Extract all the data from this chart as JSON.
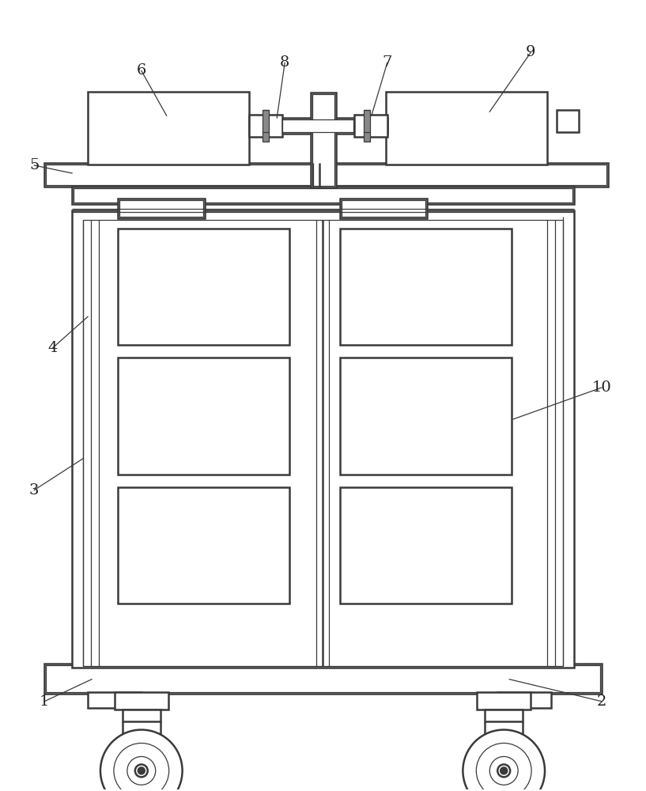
{
  "line_color": "#3a3a3a",
  "bg_color": "#ffffff",
  "lw_main": 1.8,
  "lw_thin": 0.9,
  "lw_thick": 2.2,
  "figsize": [
    8.17,
    10.0
  ],
  "dpi": 100
}
